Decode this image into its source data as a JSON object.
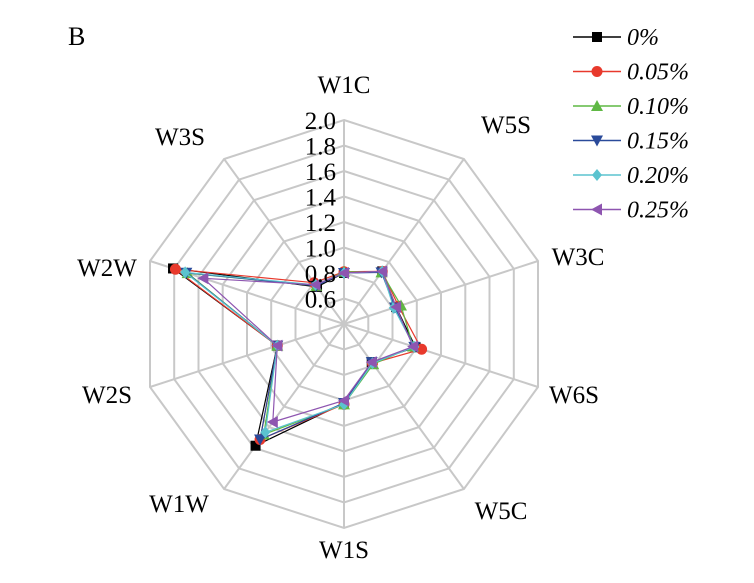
{
  "chart_data": {
    "type": "radar",
    "panel_label": "B",
    "axes": [
      "W1C",
      "W5S",
      "W3C",
      "W6S",
      "W5C",
      "W1S",
      "W1W",
      "W2S",
      "W2W",
      "W3S"
    ],
    "radial_range": [
      0.4,
      2.0
    ],
    "radial_ticks": [
      "0.6",
      "0.8",
      "1.0",
      "1.2",
      "1.4",
      "1.6",
      "1.8",
      "2.0"
    ],
    "grid": true,
    "legend_position": "top-right",
    "series": [
      {
        "name": "0%",
        "color": "#000000",
        "marker": "square",
        "values": [
          0.8,
          0.91,
          0.83,
          0.99,
          0.77,
          1.02,
          1.58,
          0.95,
          1.81,
          0.76
        ]
      },
      {
        "name": "0.05%",
        "color": "#e8392c",
        "marker": "circle",
        "values": [
          0.81,
          0.91,
          0.85,
          1.04,
          0.78,
          1.03,
          1.52,
          0.95,
          1.79,
          0.8
        ]
      },
      {
        "name": "0.10%",
        "color": "#5fb844",
        "marker": "triangle-up",
        "values": [
          0.81,
          0.9,
          0.87,
          0.97,
          0.79,
          1.03,
          1.47,
          0.95,
          1.69,
          0.77
        ]
      },
      {
        "name": "0.15%",
        "color": "#2a4a9a",
        "marker": "triangle-down",
        "values": [
          0.8,
          0.9,
          0.82,
          0.98,
          0.77,
          1.02,
          1.52,
          0.95,
          1.7,
          0.77
        ]
      },
      {
        "name": "0.20%",
        "color": "#5bc3cf",
        "marker": "diamond",
        "values": [
          0.8,
          0.91,
          0.81,
          0.98,
          0.78,
          1.03,
          1.45,
          0.95,
          1.71,
          0.78
        ]
      },
      {
        "name": "0.25%",
        "color": "#8e55b0",
        "marker": "triangle-left",
        "values": [
          0.8,
          0.91,
          0.83,
          0.97,
          0.77,
          1.0,
          1.35,
          0.95,
          1.56,
          0.78
        ]
      }
    ]
  }
}
